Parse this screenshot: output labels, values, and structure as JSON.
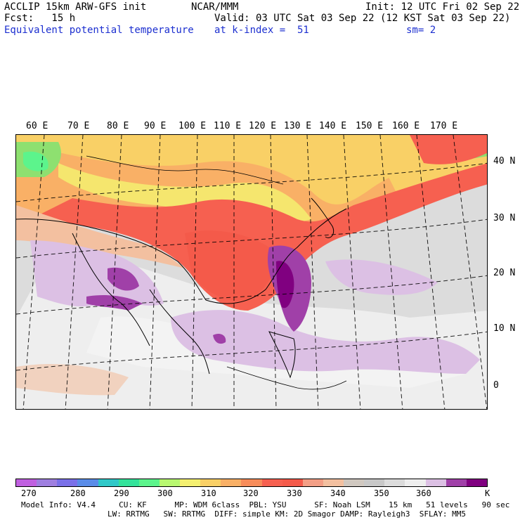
{
  "header": {
    "line1_left": "ACCLIP 15km ARW-GFS init",
    "line1_center": "NCAR/MMM",
    "line1_right": "Init: 12 UTC Fri 02 Sep 22",
    "line2_left": "Fcst:   15 h",
    "line2_right": "Valid: 03 UTC Sat 03 Sep 22 (12 KST Sat 03 Sep 22)",
    "line3_left": "Equivalent potential temperature",
    "line3_center": "at k-index =  51",
    "line3_right": "sm= 2"
  },
  "map": {
    "lon_labels": [
      "60 E",
      "70 E",
      "80 E",
      "90 E",
      "100 E",
      "110 E",
      "120 E",
      "130 E",
      "140 E",
      "150 E",
      "160 E",
      "170 E"
    ],
    "lat_labels": [
      "40 N",
      "30 N",
      "20 N",
      "10 N",
      "0"
    ]
  },
  "colorbar": {
    "unit": "K",
    "tick_labels": [
      "270",
      "280",
      "290",
      "300",
      "310",
      "320",
      "330",
      "340",
      "350",
      "360"
    ],
    "colors": [
      "#c060e0",
      "#9f7fe0",
      "#7a70e8",
      "#5a8ce8",
      "#30c8c8",
      "#34e39b",
      "#5cf48c",
      "#b8f870",
      "#f4f070",
      "#f9d066",
      "#f9b066",
      "#f78c5a",
      "#f66050",
      "#f45a4a",
      "#f39f86",
      "#f3c0a0",
      "#d0c8c0",
      "#c8c8c8",
      "#dcdcdc",
      "#eeeeee",
      "#dcc0e4",
      "#a040a8",
      "#800080"
    ]
  },
  "footer": {
    "line1": "Model Info: V4.4     CU: KF      MP: WDM 6class  PBL: YSU      SF: Noah LSM    15 km   51 levels   90 sec",
    "line2": "LW: RRTMG   SW: RRTMG  DIFF: simple KM: 2D Smagor DAMP: Rayleigh3  SFLAY: MM5"
  }
}
